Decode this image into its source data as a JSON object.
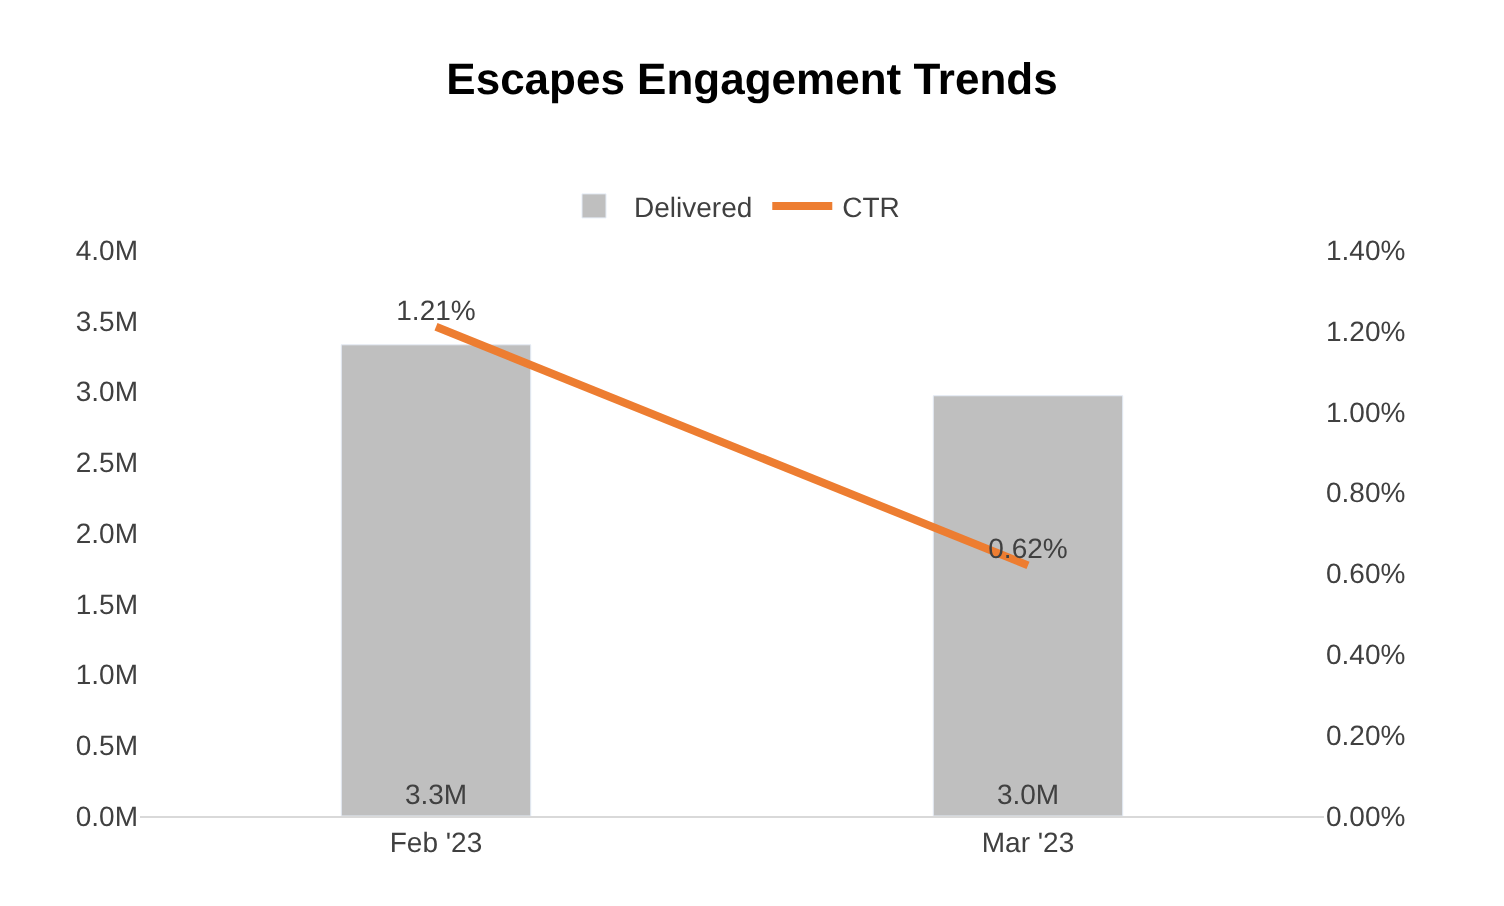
{
  "chart_data": {
    "type": "bar",
    "title": "Escapes Engagement Trends",
    "categories": [
      "Feb '23",
      "Mar '23"
    ],
    "series": [
      {
        "name": "Delivered",
        "color": "#bfbfbf",
        "values": [
          3.33,
          2.97
        ],
        "value_labels": [
          "3.3M",
          "3.0M"
        ]
      },
      {
        "name": "CTR",
        "type": "line",
        "axis": "y2",
        "color": "#ed7d31",
        "values": [
          1.21,
          0.62
        ],
        "value_labels": [
          "1.21%",
          "0.62%"
        ],
        "marker": "none",
        "line_style": "solid"
      }
    ],
    "ylim": [
      0,
      4
    ],
    "yticks": [
      {
        "value": 0,
        "label": "0.0M"
      },
      {
        "value": 0.5,
        "label": "0.5M"
      },
      {
        "value": 1,
        "label": "1.0M"
      },
      {
        "value": 1.5,
        "label": "1.5M"
      },
      {
        "value": 2,
        "label": "2.0M"
      },
      {
        "value": 2.5,
        "label": "2.5M"
      },
      {
        "value": 3,
        "label": "3.0M"
      },
      {
        "value": 3.5,
        "label": "3.5M"
      },
      {
        "value": 4,
        "label": "4.0M"
      }
    ],
    "y2lim": [
      0,
      1.4
    ],
    "y2ticks": [
      {
        "value": 0,
        "label": "0.00%"
      },
      {
        "value": 0.2,
        "label": "0.20%"
      },
      {
        "value": 0.4,
        "label": "0.40%"
      },
      {
        "value": 0.6,
        "label": "0.60%"
      },
      {
        "value": 0.8,
        "label": "0.80%"
      },
      {
        "value": 1.0,
        "label": "1.00%"
      },
      {
        "value": 1.2,
        "label": "1.20%"
      },
      {
        "value": 1.4,
        "label": "1.40%"
      }
    ],
    "legend": "top"
  }
}
